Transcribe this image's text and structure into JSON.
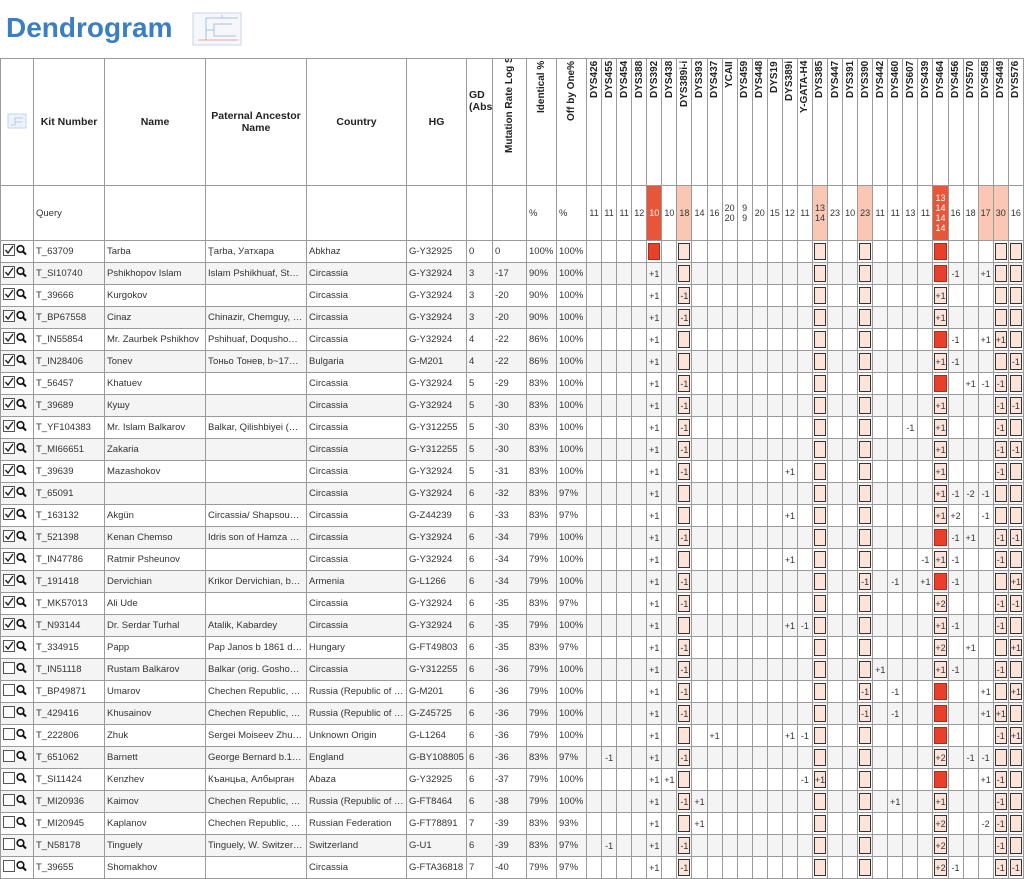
{
  "header": {
    "title": "Dendrogram"
  },
  "table": {
    "columns": [
      "Kit Number",
      "Name",
      "Paternal Ancestor Name",
      "Country",
      "HG",
      "GD (Abs)",
      "Mutation Rate Log Sum",
      "Identical %",
      "Off by One%"
    ],
    "markers": [
      "DYS426",
      "DYS455",
      "DYS454",
      "DYS388",
      "DYS392",
      "DYS438",
      "DYS389i-i",
      "DYS393",
      "DYS437",
      "YCAII",
      "DYS459",
      "DYS448",
      "DYS19",
      "DYS389i",
      "Y-GATA-H4",
      "DYS385",
      "DYS447",
      "DYS391",
      "DYS390",
      "DYS442",
      "DYS460",
      "DYS607",
      "DYS439",
      "DYS464",
      "DYS456",
      "DYS570",
      "DYS458",
      "DYS449",
      "DYS576"
    ],
    "query": {
      "kit": "Query",
      "identical": "%",
      "off_by_one": "%",
      "values": {
        "DYS426": "11",
        "DYS455": "11",
        "DYS454": "11",
        "DYS388": "12",
        "DYS392": "10",
        "DYS438": "10",
        "DYS389i-i": "18",
        "DYS393": "14",
        "DYS437": "16",
        "YCAII": [
          "20",
          "20"
        ],
        "DYS459": [
          "9",
          "9"
        ],
        "DYS448": "20",
        "DYS19": "15",
        "DYS389i": "12",
        "Y-GATA-H4": "11",
        "DYS385": [
          "13",
          "14"
        ],
        "DYS447": "23",
        "DYS391": "10",
        "DYS390": "23",
        "DYS442": "11",
        "DYS460": "11",
        "DYS607": "13",
        "DYS439": "11",
        "DYS464": [
          "13",
          "14",
          "14",
          "14"
        ],
        "DYS456": "16",
        "DYS570": "18",
        "DYS458": "17",
        "DYS449": "30",
        "DYS576": "16"
      },
      "red": [
        "DYS392",
        "DYS464"
      ],
      "light": [
        "DYS389i-i",
        "DYS385",
        "DYS390",
        "DYS458",
        "DYS449"
      ]
    },
    "rows": [
      {
        "checked": true,
        "kit": "T_63709",
        "name": "Tarba",
        "ancestor": "Ţarba, Уатхара",
        "country": "Abkhaz",
        "hg": "G-Y32925",
        "gd": 0,
        "mutation": 0,
        "identical": "100%",
        "off_by_one": "100%",
        "diffs": {},
        "red": [
          "DYS392",
          "DYS464"
        ]
      },
      {
        "checked": true,
        "kit": "T_SI10740",
        "name": "Pshikhopov Islam",
        "ancestor": "Islam Pshikhuaf, St…",
        "country": "Circassia",
        "hg": "G-Y32924",
        "gd": 3,
        "mutation": -17,
        "identical": "90%",
        "off_by_one": "100%",
        "diffs": {
          "DYS392": "+1",
          "DYS456": "-1",
          "DYS458": "+1"
        },
        "red": [
          "DYS464"
        ]
      },
      {
        "checked": true,
        "kit": "T_39666",
        "name": "Kurgokov",
        "country": "Circassia",
        "hg": "G-Y32924",
        "gd": 3,
        "mutation": -20,
        "identical": "90%",
        "off_by_one": "100%",
        "diffs": {
          "DYS392": "+1",
          "DYS389i-i": "-1",
          "DYS464": "+1"
        },
        "red": []
      },
      {
        "checked": true,
        "kit": "T_BP67558",
        "name": "Cinaz",
        "ancestor": "Chinazir, Chemguy, …",
        "country": "Circassia",
        "hg": "G-Y32924",
        "gd": 3,
        "mutation": -20,
        "identical": "90%",
        "off_by_one": "100%",
        "diffs": {
          "DYS392": "+1",
          "DYS389i-i": "-1",
          "DYS464": "+1"
        },
        "red": []
      },
      {
        "checked": true,
        "kit": "T_IN55854",
        "name": "Mr. Zaurbek Pshikhov",
        "ancestor": "Pshihuaf, Doqusho…",
        "country": "Circassia",
        "hg": "G-Y32924",
        "gd": 4,
        "mutation": -22,
        "identical": "86%",
        "off_by_one": "100%",
        "diffs": {
          "DYS392": "+1",
          "DYS456": "-1",
          "DYS458": "+1",
          "DYS449": "+1"
        },
        "red": [
          "DYS464"
        ]
      },
      {
        "checked": true,
        "kit": "T_IN28406",
        "name": "Tonev",
        "ancestor": "Тоньо Тонев, b~17…",
        "country": "Bulgaria",
        "hg": "G-M201",
        "gd": 4,
        "mutation": -22,
        "identical": "86%",
        "off_by_one": "100%",
        "diffs": {
          "DYS392": "+1",
          "DYS464": "+1",
          "DYS456": "-1",
          "DYS576": "-1"
        },
        "red": []
      },
      {
        "checked": true,
        "kit": "T_56457",
        "name": "Khatuev",
        "country": "Circassia",
        "hg": "G-Y32924",
        "gd": 5,
        "mutation": -29,
        "identical": "83%",
        "off_by_one": "100%",
        "diffs": {
          "DYS392": "+1",
          "DYS389i-i": "-1",
          "DYS570": "+1",
          "DYS458": "-1",
          "DYS449": "-1"
        },
        "red": [
          "DYS464"
        ]
      },
      {
        "checked": true,
        "kit": "T_39689",
        "name": "Кушу",
        "country": "Circassia",
        "hg": "G-Y32924",
        "gd": 5,
        "mutation": -30,
        "identical": "83%",
        "off_by_one": "100%",
        "diffs": {
          "DYS392": "+1",
          "DYS389i-i": "-1",
          "DYS464": "+1",
          "DYS449": "-1",
          "DYS576": "-1"
        },
        "red": []
      },
      {
        "checked": true,
        "kit": "T_YF104383",
        "name": "Mr. Islam Balkarov",
        "ancestor": "Balkar, Qilishbiyei (…",
        "country": "Circassia",
        "hg": "G-Y312255",
        "gd": 5,
        "mutation": -30,
        "identical": "83%",
        "off_by_one": "100%",
        "diffs": {
          "DYS392": "+1",
          "DYS389i-i": "-1",
          "DYS607": "-1",
          "DYS464": "+1",
          "DYS449": "-1"
        },
        "red": []
      },
      {
        "checked": true,
        "kit": "T_MI66651",
        "name": "Zakaria",
        "country": "Circassia",
        "hg": "G-Y312255",
        "gd": 5,
        "mutation": -30,
        "identical": "83%",
        "off_by_one": "100%",
        "diffs": {
          "DYS392": "+1",
          "DYS389i-i": "-1",
          "DYS464": "+1",
          "DYS449": "-1",
          "DYS576": "-1"
        },
        "red": []
      },
      {
        "checked": true,
        "kit": "T_39639",
        "name": "Mazashokov",
        "country": "Circassia",
        "hg": "G-Y32924",
        "gd": 5,
        "mutation": -31,
        "identical": "83%",
        "off_by_one": "100%",
        "diffs": {
          "DYS392": "+1",
          "DYS389i-i": "-1",
          "DYS389i": "+1",
          "DYS464": "+1",
          "DYS449": "-1"
        },
        "red": []
      },
      {
        "checked": true,
        "kit": "T_65091",
        "country": "Circassia",
        "hg": "G-Y32924",
        "gd": 6,
        "mutation": -32,
        "identical": "83%",
        "off_by_one": "97%",
        "diffs": {
          "DYS392": "+1",
          "DYS464": "+1",
          "DYS456": "-1",
          "DYS570": "-2",
          "DYS458": "-1"
        },
        "red": []
      },
      {
        "checked": true,
        "kit": "T_163132",
        "name": "Akgün",
        "ancestor": "Circassia/ Shapsou…",
        "country": "Circassia",
        "hg": "G-Z44239",
        "gd": 6,
        "mutation": -33,
        "identical": "83%",
        "off_by_one": "97%",
        "diffs": {
          "DYS392": "+1",
          "DYS389i": "+1",
          "DYS464": "+1",
          "DYS456": "+2",
          "DYS458": "-1"
        },
        "red": []
      },
      {
        "checked": true,
        "kit": "T_521398",
        "name": "Kenan Chemso",
        "ancestor": "Idris son of Hamza …",
        "country": "Circassia",
        "hg": "G-Y32924",
        "gd": 6,
        "mutation": -34,
        "identical": "79%",
        "off_by_one": "100%",
        "diffs": {
          "DYS392": "+1",
          "DYS389i-i": "-1",
          "DYS456": "-1",
          "DYS570": "+1",
          "DYS449": "-1",
          "DYS576": "-1"
        },
        "red": [
          "DYS464"
        ]
      },
      {
        "checked": true,
        "kit": "T_IN47786",
        "name": "Ratmir Psheunov",
        "country": "Circassia",
        "hg": "G-Y32924",
        "gd": 6,
        "mutation": -34,
        "identical": "79%",
        "off_by_one": "100%",
        "diffs": {
          "DYS392": "+1",
          "DYS389i": "+1",
          "DYS439": "-1",
          "DYS464": "+1",
          "DYS456": "-1",
          "DYS449": "-1"
        },
        "red": []
      },
      {
        "checked": true,
        "kit": "T_191418",
        "name": "Dervichian",
        "ancestor": "Krikor Dervichian, b…",
        "country": "Armenia",
        "hg": "G-L1266",
        "gd": 6,
        "mutation": -34,
        "identical": "79%",
        "off_by_one": "100%",
        "diffs": {
          "DYS392": "+1",
          "DYS389i-i": "-1",
          "DYS390": "-1",
          "DYS460": "-1",
          "DYS439": "+1",
          "DYS456": "-1",
          "DYS576": "+1"
        },
        "red": [
          "DYS464"
        ]
      },
      {
        "checked": true,
        "kit": "T_MK57013",
        "name": "Ali Ude",
        "country": "Circassia",
        "hg": "G-Y32924",
        "gd": 6,
        "mutation": -35,
        "identical": "83%",
        "off_by_one": "97%",
        "diffs": {
          "DYS392": "+1",
          "DYS389i-i": "-1",
          "DYS464": "+2",
          "DYS449": "-1",
          "DYS576": "-1"
        },
        "red": []
      },
      {
        "checked": true,
        "kit": "T_N93144",
        "name": "Dr. Serdar Turhal",
        "ancestor": "Atalik, Kabardey",
        "country": "Circassia",
        "hg": "G-Y32924",
        "gd": 6,
        "mutation": -35,
        "identical": "79%",
        "off_by_one": "100%",
        "diffs": {
          "DYS392": "+1",
          "DYS389i": "+1",
          "Y-GATA-H4": "-1",
          "DYS464": "+1",
          "DYS456": "-1",
          "DYS449": "-1"
        },
        "red": []
      },
      {
        "checked": true,
        "kit": "T_334915",
        "name": "Papp",
        "ancestor": "Pap Janos b 1861 d…",
        "country": "Hungary",
        "hg": "G-FT49803",
        "gd": 6,
        "mutation": -35,
        "identical": "83%",
        "off_by_one": "97%",
        "diffs": {
          "DYS392": "+1",
          "DYS389i-i": "-1",
          "DYS464": "+2",
          "DYS570": "+1",
          "DYS576": "+1"
        },
        "red": []
      },
      {
        "checked": false,
        "kit": "T_IN51118",
        "name": "Rustam Balkarov",
        "ancestor": "Balkar (orig. Gosho…",
        "country": "Circassia",
        "hg": "G-Y312255",
        "gd": 6,
        "mutation": -36,
        "identical": "79%",
        "off_by_one": "100%",
        "diffs": {
          "DYS392": "+1",
          "DYS389i-i": "-1",
          "DYS442": "+1",
          "DYS464": "+1",
          "DYS456": "-1",
          "DYS449": "-1"
        },
        "red": []
      },
      {
        "checked": false,
        "kit": "T_BP49871",
        "name": "Umarov",
        "ancestor": "Chechen Republic, …",
        "country": "Russia (Republic of …",
        "hg": "G-M201",
        "gd": 6,
        "mutation": -36,
        "identical": "79%",
        "off_by_one": "100%",
        "diffs": {
          "DYS392": "+1",
          "DYS389i-i": "-1",
          "DYS390": "-1",
          "DYS460": "-1",
          "DYS458": "+1",
          "DYS576": "+1"
        },
        "red": [
          "DYS464"
        ]
      },
      {
        "checked": false,
        "kit": "T_429416",
        "name": "Khusainov",
        "ancestor": "Chechen Republic, …",
        "country": "Russia (Republic of …",
        "hg": "G-Z45725",
        "gd": 6,
        "mutation": -36,
        "identical": "79%",
        "off_by_one": "100%",
        "diffs": {
          "DYS392": "+1",
          "DYS389i-i": "-1",
          "DYS390": "-1",
          "DYS460": "-1",
          "DYS458": "+1",
          "DYS449": "+1"
        },
        "red": [
          "DYS464"
        ]
      },
      {
        "checked": false,
        "kit": "T_222806",
        "name": "Zhuk",
        "ancestor": "Sergei Moiseev Zhu…",
        "country": "Unknown Origin",
        "hg": "G-L1264",
        "gd": 6,
        "mutation": -36,
        "identical": "79%",
        "off_by_one": "100%",
        "diffs": {
          "DYS392": "+1",
          "DYS437": "+1",
          "DYS389i": "+1",
          "Y-GATA-H4": "-1",
          "DYS449": "-1",
          "DYS576": "+1"
        },
        "red": [
          "DYS464"
        ]
      },
      {
        "checked": false,
        "kit": "T_651062",
        "name": "Barnett",
        "ancestor": "George Bernard b.1…",
        "country": "England",
        "hg": "G-BY108805",
        "gd": 6,
        "mutation": -36,
        "identical": "83%",
        "off_by_one": "97%",
        "diffs": {
          "DYS455": "-1",
          "DYS392": "+1",
          "DYS389i-i": "-1",
          "DYS464": "+2",
          "DYS570": "-1",
          "DYS458": "-1"
        },
        "red": []
      },
      {
        "checked": false,
        "kit": "T_SI11424",
        "name": "Kenzhev",
        "ancestor": "Къанцьа, Албырган",
        "country": "Abaza",
        "hg": "G-Y32925",
        "gd": 6,
        "mutation": -37,
        "identical": "79%",
        "off_by_one": "100%",
        "diffs": {
          "DYS392": "+1",
          "DYS438": "+1",
          "Y-GATA-H4": "-1",
          "DYS385": "+1",
          "DYS458": "+1",
          "DYS449": "-1"
        },
        "red": [
          "DYS464"
        ]
      },
      {
        "checked": false,
        "kit": "T_MI20936",
        "name": "Kaimov",
        "ancestor": "Chechen Republic, …",
        "country": "Russia (Republic of …",
        "hg": "G-FT8464",
        "gd": 6,
        "mutation": -38,
        "identical": "79%",
        "off_by_one": "100%",
        "diffs": {
          "DYS392": "+1",
          "DYS389i-i": "-1",
          "DYS393": "+1",
          "DYS460": "+1",
          "DYS464": "+1",
          "DYS449": "-1"
        },
        "red": []
      },
      {
        "checked": false,
        "kit": "T_MI20945",
        "name": "Kaplanov",
        "ancestor": "Chechen Republic, …",
        "country": "Russian Federation",
        "hg": "G-FT78891",
        "gd": 7,
        "mutation": -39,
        "identical": "83%",
        "off_by_one": "93%",
        "diffs": {
          "DYS392": "+1",
          "DYS393": "+1",
          "DYS464": "+2",
          "DYS458": "-2",
          "DYS449": "-1"
        },
        "red": []
      },
      {
        "checked": false,
        "kit": "T_N58178",
        "name": "Tinguely",
        "ancestor": "Tinguely, W. Switzer…",
        "country": "Switzerland",
        "hg": "G-U1",
        "gd": 6,
        "mutation": -39,
        "identical": "83%",
        "off_by_one": "97%",
        "diffs": {
          "DYS455": "-1",
          "DYS392": "+1",
          "DYS389i-i": "-1",
          "DYS464": "+2",
          "DYS449": "-1"
        },
        "red": []
      },
      {
        "checked": false,
        "kit": "T_39655",
        "name": "Shomakhov",
        "country": "Circassia",
        "hg": "G-FTA36818",
        "gd": 7,
        "mutation": -40,
        "identical": "79%",
        "off_by_one": "97%",
        "diffs": {
          "DYS392": "+1",
          "DYS389i-i": "-1",
          "DYS464": "+2",
          "DYS456": "-1",
          "DYS449": "-1",
          "DYS576": "-1"
        },
        "red": []
      }
    ]
  }
}
